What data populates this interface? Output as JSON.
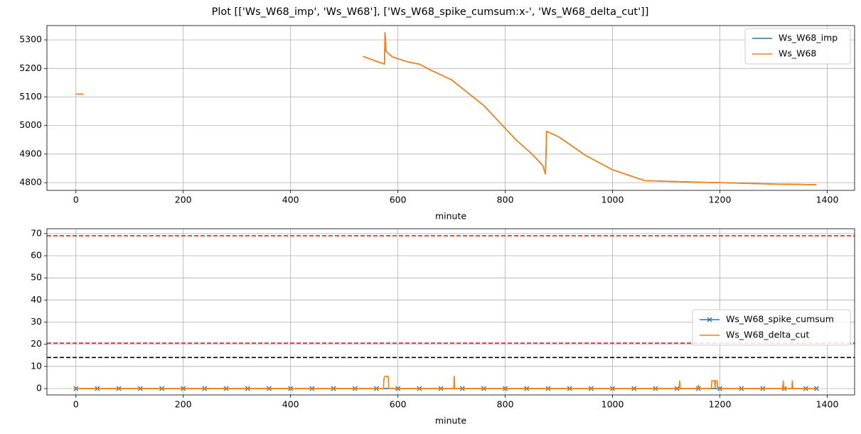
{
  "title": "Plot [['Ws_W68_imp', 'Ws_W68'], ['Ws_W68_spike_cumsum:x-', 'Ws_W68_delta_cut']]",
  "chart_data": [
    {
      "type": "line",
      "xlabel": "minute",
      "xlim": [
        -54,
        1451
      ],
      "ylim": [
        4773,
        5350
      ],
      "xticks": [
        0,
        200,
        400,
        600,
        800,
        1000,
        1200,
        1400
      ],
      "yticks": [
        4800,
        4900,
        5000,
        5100,
        5200,
        5300
      ],
      "grid": true,
      "legend": "upper right",
      "series": [
        {
          "name": "Ws_W68_imp",
          "color": "#1f77b4",
          "x": [
            0,
            14,
            null,
            535,
            560,
            575,
            576,
            578,
            590,
            620,
            640,
            660,
            700,
            720,
            760,
            800,
            820,
            850,
            870,
            875,
            877,
            900,
            950,
            1000,
            1060,
            1150,
            1200,
            1300,
            1380
          ],
          "values": [
            5110,
            5110,
            null,
            5242,
            5225,
            5215,
            5325,
            5260,
            5240,
            5222,
            5215,
            5195,
            5160,
            5130,
            5070,
            4990,
            4950,
            4900,
            4860,
            4830,
            4980,
            4960,
            4895,
            4845,
            4807,
            4802,
            4800,
            4795,
            4793
          ]
        },
        {
          "name": "Ws_W68",
          "color": "#ff7f0e",
          "x": [
            0,
            14,
            null,
            535,
            560,
            575,
            576,
            578,
            590,
            620,
            640,
            660,
            700,
            720,
            760,
            800,
            820,
            850,
            870,
            875,
            877,
            900,
            950,
            1000,
            1060,
            1150,
            1200,
            1300,
            1380
          ],
          "values": [
            5110,
            5110,
            null,
            5242,
            5225,
            5215,
            5325,
            5260,
            5240,
            5222,
            5215,
            5195,
            5160,
            5130,
            5070,
            4990,
            4950,
            4900,
            4860,
            4830,
            4980,
            4960,
            4895,
            4845,
            4807,
            4802,
            4800,
            4795,
            4793
          ]
        }
      ]
    },
    {
      "type": "line",
      "xlabel": "minute",
      "xlim": [
        -54,
        1451
      ],
      "ylim": [
        -2.9,
        72.2
      ],
      "xticks": [
        0,
        200,
        400,
        600,
        800,
        1000,
        1200,
        1400
      ],
      "yticks": [
        0,
        10,
        20,
        30,
        40,
        50,
        60,
        70
      ],
      "grid": true,
      "legend": "center right",
      "hlines": [
        {
          "value": 69,
          "color": "#d62728"
        },
        {
          "value": 20.5,
          "color": "#d62728"
        },
        {
          "value": 14,
          "color": "#000000"
        }
      ],
      "series": [
        {
          "name": "Ws_W68_spike_cumsum",
          "color": "#1f77b4",
          "marker": "x",
          "x": [
            0,
            40,
            80,
            120,
            160,
            200,
            240,
            280,
            320,
            360,
            400,
            440,
            480,
            520,
            560,
            600,
            640,
            680,
            720,
            760,
            800,
            840,
            880,
            920,
            960,
            1000,
            1040,
            1080,
            1120,
            1160,
            1200,
            1240,
            1280,
            1320,
            1360,
            1380
          ],
          "values": [
            0,
            0,
            0,
            0,
            0,
            0,
            0,
            0,
            0,
            0,
            0,
            0,
            0,
            0,
            0,
            0,
            0,
            0,
            0,
            0,
            0,
            0,
            0,
            0,
            0,
            0,
            0,
            0,
            0,
            0,
            0,
            0,
            0,
            0,
            0,
            0
          ]
        },
        {
          "name": "Ws_W68_delta_cut",
          "color": "#ff7f0e",
          "x": [
            0,
            573,
            574,
            576,
            582,
            583,
            704,
            705,
            706,
            1124,
            1125,
            1126,
            1159,
            1160,
            1161,
            1184,
            1185,
            1190,
            1191,
            1192,
            1195,
            1196,
            1317,
            1318,
            1319,
            1334,
            1335,
            1336,
            1380
          ],
          "values": [
            0,
            0,
            4.5,
            5.5,
            5.5,
            0,
            0,
            5.5,
            0,
            0,
            3.5,
            0,
            0,
            1.5,
            0,
            0,
            3.5,
            3.5,
            0.5,
            3.5,
            3.5,
            0,
            0,
            3.5,
            0,
            0,
            3.5,
            0,
            0
          ]
        }
      ]
    }
  ]
}
